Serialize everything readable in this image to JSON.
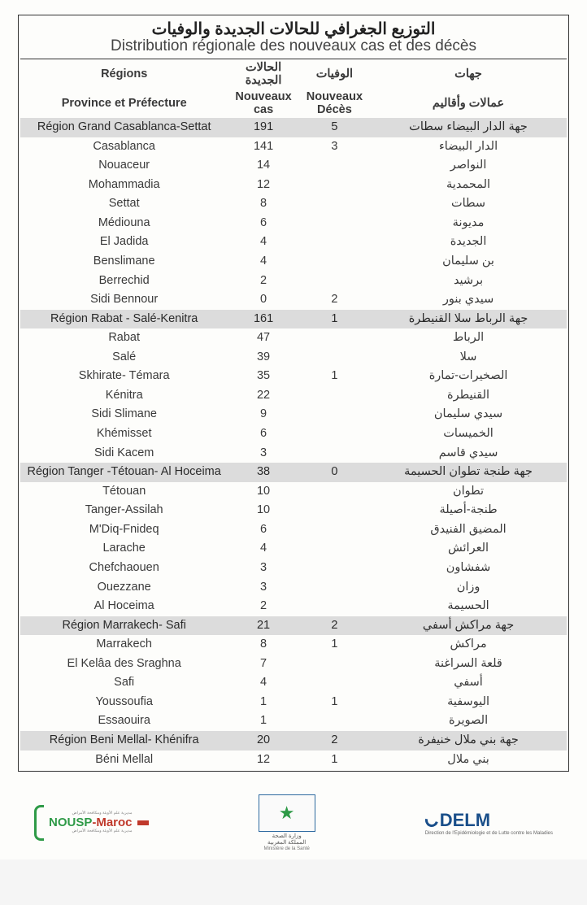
{
  "title": {
    "ar": "التوزيع الجغرافي للحالات الجديدة والوفيات",
    "fr": "Distribution régionale des nouveaux cas et des décès"
  },
  "headers": {
    "regions_fr": "Régions",
    "province_fr": "Province et Préfecture",
    "cases_ar": "الحالات الجديدة",
    "cases_fr": "Nouveaux cas",
    "deaths_ar": "الوفيات",
    "deaths_fr": "Nouveaux Décès",
    "regions_ar": "جهات",
    "province_ar": "عمالات وأقاليم"
  },
  "rows": [
    {
      "type": "region",
      "fr": "Région Grand Casablanca-Settat",
      "cas": "191",
      "dec": "5",
      "ar": "جهة الدار البيضاء سطات"
    },
    {
      "type": "sub",
      "fr": "Casablanca",
      "cas": "141",
      "dec": "3",
      "ar": "الدار البيضاء"
    },
    {
      "type": "sub",
      "fr": "Nouaceur",
      "cas": "14",
      "dec": "",
      "ar": "النواصر"
    },
    {
      "type": "sub",
      "fr": "Mohammadia",
      "cas": "12",
      "dec": "",
      "ar": "المحمدية"
    },
    {
      "type": "sub",
      "fr": "Settat",
      "cas": "8",
      "dec": "",
      "ar": "سطات"
    },
    {
      "type": "sub",
      "fr": "Médiouna",
      "cas": "6",
      "dec": "",
      "ar": "مديونة"
    },
    {
      "type": "sub",
      "fr": "El Jadida",
      "cas": "4",
      "dec": "",
      "ar": "الجديدة"
    },
    {
      "type": "sub",
      "fr": "Benslimane",
      "cas": "4",
      "dec": "",
      "ar": "بن سليمان"
    },
    {
      "type": "sub",
      "fr": "Berrechid",
      "cas": "2",
      "dec": "",
      "ar": "برشيد"
    },
    {
      "type": "sub",
      "fr": "Sidi Bennour",
      "cas": "0",
      "dec": "2",
      "ar": "سيدي بنور"
    },
    {
      "type": "region",
      "fr": "Région Rabat - Salé-Kenitra",
      "cas": "161",
      "dec": "1",
      "ar": "جهة الرباط سلا القنيطرة"
    },
    {
      "type": "sub",
      "fr": "Rabat",
      "cas": "47",
      "dec": "",
      "ar": "الرباط"
    },
    {
      "type": "sub",
      "fr": "Salé",
      "cas": "39",
      "dec": "",
      "ar": "سلا"
    },
    {
      "type": "sub",
      "fr": "Skhirate- Témara",
      "cas": "35",
      "dec": "1",
      "ar": "الصخيرات-تمارة"
    },
    {
      "type": "sub",
      "fr": "Kénitra",
      "cas": "22",
      "dec": "",
      "ar": "القنيطرة"
    },
    {
      "type": "sub",
      "fr": "Sidi Slimane",
      "cas": "9",
      "dec": "",
      "ar": "سيدي سليمان"
    },
    {
      "type": "sub",
      "fr": "Khémisset",
      "cas": "6",
      "dec": "",
      "ar": "الخميسات"
    },
    {
      "type": "sub",
      "fr": "Sidi Kacem",
      "cas": "3",
      "dec": "",
      "ar": "سيدي قاسم"
    },
    {
      "type": "region",
      "fr": "Région Tanger -Tétouan- Al Hoceima",
      "cas": "38",
      "dec": "0",
      "ar": "جهة طنجة تطوان الحسيمة"
    },
    {
      "type": "sub",
      "fr": "Tétouan",
      "cas": "10",
      "dec": "",
      "ar": "تطوان"
    },
    {
      "type": "sub",
      "fr": "Tanger-Assilah",
      "cas": "10",
      "dec": "",
      "ar": "طنجة-أصيلة"
    },
    {
      "type": "sub",
      "fr": "M'Diq-Fnideq",
      "cas": "6",
      "dec": "",
      "ar": "المضيق الفنيدق"
    },
    {
      "type": "sub",
      "fr": "Larache",
      "cas": "4",
      "dec": "",
      "ar": "العرائش"
    },
    {
      "type": "sub",
      "fr": "Chefchaouen",
      "cas": "3",
      "dec": "",
      "ar": "شفشاون"
    },
    {
      "type": "sub",
      "fr": "Ouezzane",
      "cas": "3",
      "dec": "",
      "ar": "وزان"
    },
    {
      "type": "sub",
      "fr": "Al Hoceima",
      "cas": "2",
      "dec": "",
      "ar": "الحسيمة"
    },
    {
      "type": "region",
      "fr": "Région Marrakech- Safi",
      "cas": "21",
      "dec": "2",
      "ar": "جهة مراكش أسفي"
    },
    {
      "type": "sub",
      "fr": "Marrakech",
      "cas": "8",
      "dec": "1",
      "ar": "مراكش"
    },
    {
      "type": "sub",
      "fr": "El Kelâa des  Sraghna",
      "cas": "7",
      "dec": "",
      "ar": "قلعة السراغنة"
    },
    {
      "type": "sub",
      "fr": "Safi",
      "cas": "4",
      "dec": "",
      "ar": "أسفي"
    },
    {
      "type": "sub",
      "fr": "Youssoufia",
      "cas": "1",
      "dec": "1",
      "ar": "اليوسفية"
    },
    {
      "type": "sub",
      "fr": "Essaouira",
      "cas": "1",
      "dec": "",
      "ar": "الصويرة"
    },
    {
      "type": "region",
      "fr": "Région Beni Mellal- Khénifra",
      "cas": "20",
      "dec": "2",
      "ar": "جهة بني ملال خنيفرة"
    },
    {
      "type": "sub",
      "fr": "Béni Mellal",
      "cas": "12",
      "dec": "1",
      "ar": "بني ملال"
    }
  ],
  "footer": {
    "nousp": {
      "main": "NOUSP",
      "suffix": "-Maroc",
      "sub_ar": "مديرية علم الأوبئة ومكافحة الأمراض"
    },
    "ministry": {
      "ar": "وزارة الصحة",
      "sub": "المملكة المغربية",
      "fr": "Ministère de la Santé"
    },
    "delm": {
      "main": "DELM",
      "sub": "Direction de l'Epidémiologie et de Lutte contre les Maladies"
    }
  },
  "colors": {
    "region_bg": "#dcdcdc",
    "border": "#333333",
    "text": "#3a3a3a",
    "nousp_green": "#2e9a47",
    "nousp_red": "#c0392b",
    "delm_blue": "#1a4f8a"
  }
}
